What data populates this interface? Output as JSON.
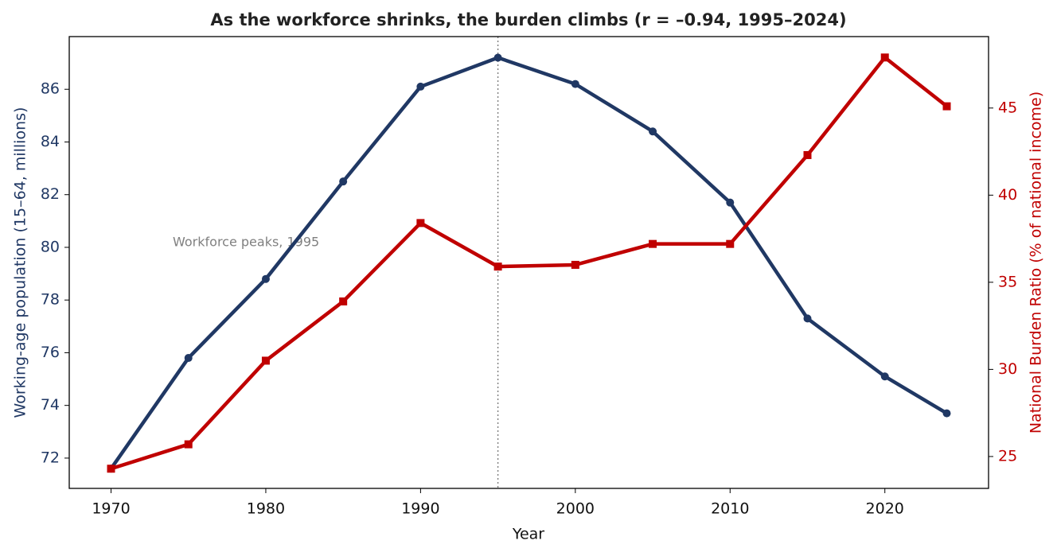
{
  "chart_data": {
    "type": "line",
    "title": "As the workforce shrinks, the burden climbs (r = –0.94, 1995–2024)",
    "x_label": "Year",
    "y_label": "Working-age population (15–64, millions)",
    "y2_label": "National Burden Ratio (% of national income)",
    "x": [
      1970,
      1975,
      1980,
      1985,
      1990,
      1995,
      2000,
      2005,
      2010,
      2015,
      2020,
      2024
    ],
    "series": [
      {
        "color": "#203864",
        "marker": "circle",
        "values": [
          71.6,
          75.8,
          78.8,
          82.5,
          86.1,
          87.2,
          86.2,
          84.4,
          81.7,
          77.3,
          75.1,
          73.7
        ]
      },
      {
        "color": "#c00000",
        "marker": "square",
        "axis": "y2",
        "values": [
          24.3,
          25.7,
          30.5,
          33.9,
          38.4,
          35.9,
          36.0,
          37.2,
          37.2,
          42.3,
          47.9,
          45.1
        ]
      }
    ],
    "xlim": [
      1967.3,
      2026.7
    ],
    "xticks": [
      1970,
      1980,
      1990,
      2000,
      2010,
      2020
    ],
    "ylim": [
      70.85,
      88
    ],
    "yticks": [
      72,
      74,
      76,
      78,
      80,
      82,
      84,
      86
    ],
    "y2lim": [
      23.17,
      49.1
    ],
    "y2ticks": [
      25,
      30,
      35,
      40,
      45
    ],
    "vline": 1995,
    "annotation": "Workforce peaks, 1995",
    "grid": false
  }
}
